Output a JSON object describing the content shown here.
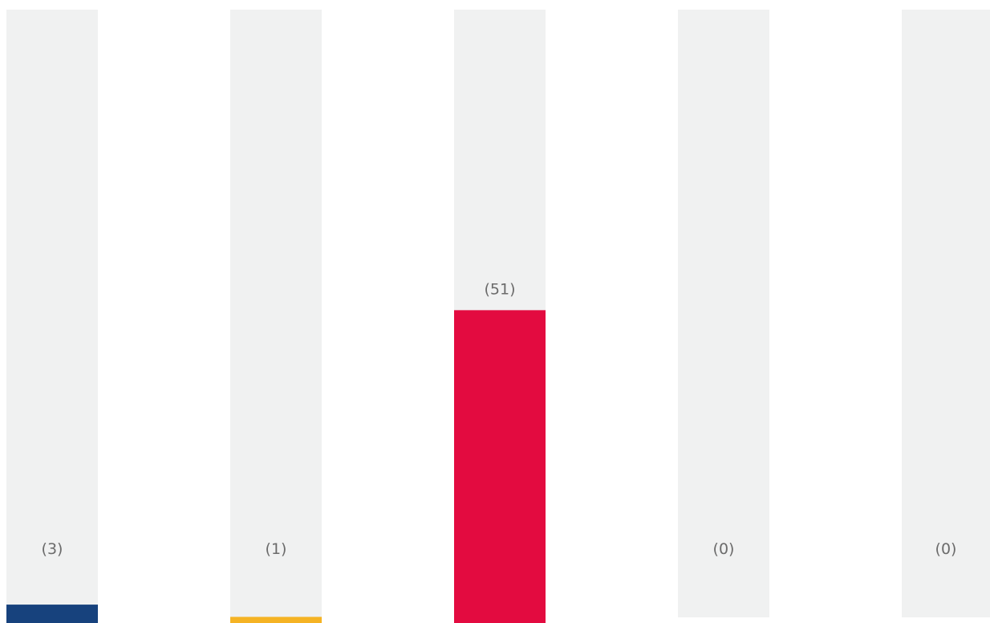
{
  "chart_data": {
    "type": "bar",
    "categories": [
      "",
      "",
      "",
      "",
      ""
    ],
    "values": [
      3,
      1,
      51,
      0,
      0
    ],
    "data_labels": [
      "(3)",
      "(1)",
      "(51)",
      "(0)",
      "(0)"
    ],
    "colors": [
      "#17427d",
      "#f5b324",
      "#e30b40",
      "#cfd3d3",
      "#cfd3d3"
    ],
    "track_color": "#f0f1f1",
    "label_color": "#6b6b6b",
    "ylim": [
      0,
      100
    ],
    "title": "",
    "xlabel": "",
    "ylabel": "",
    "grid": false,
    "legend": "none"
  }
}
